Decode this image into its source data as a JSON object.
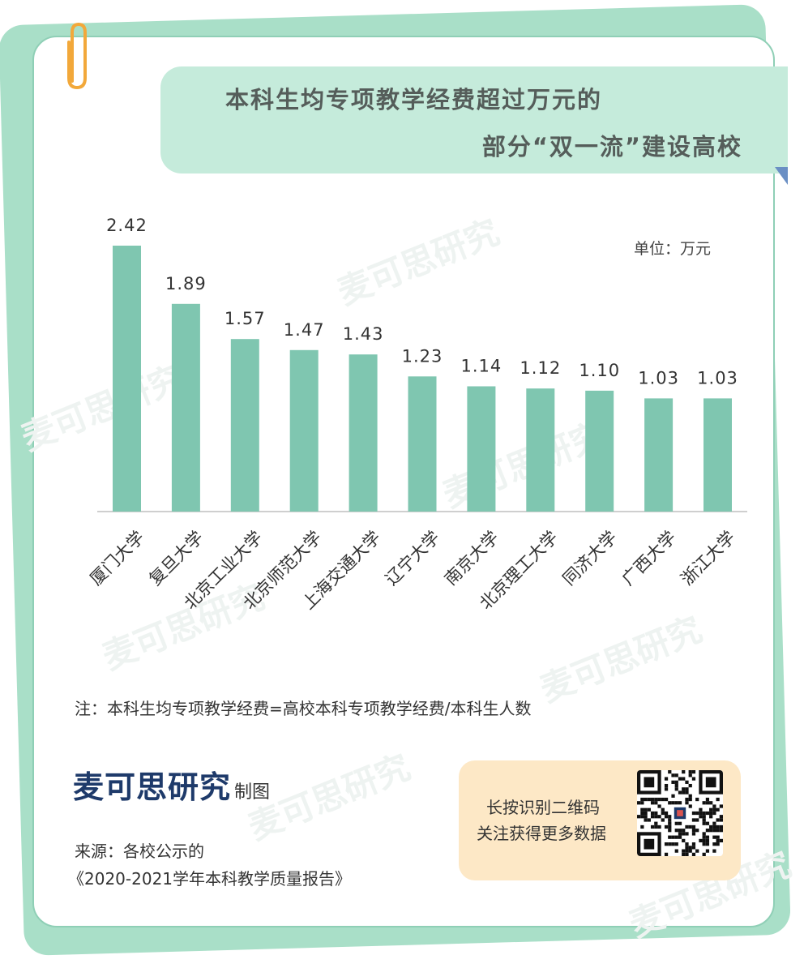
{
  "title_line1": "本科生均专项教学经费超过万元的",
  "title_line2": "部分“双一流”建设高校",
  "unit_label": "单位：万元",
  "note": "注：本科生均专项教学经费=高校本科专项教学经费/本科生人数",
  "brand": {
    "name": "麦可思研究",
    "suffix": "制图"
  },
  "source_line1": "来源：各校公示的",
  "source_line2": "《2020-2021学年本科教学质量报告》",
  "qr": {
    "line1": "长按识别二维码",
    "line2": "关注获得更多数据"
  },
  "watermark": "麦可思研究",
  "colors": {
    "bar": "#7fc6b0",
    "accent": "#c5ebdb",
    "brand": "#1e3a6a",
    "qr_box": "#fde8c6"
  },
  "chart_data": {
    "type": "bar",
    "title": "本科生均专项教学经费超过万元的部分“双一流”建设高校",
    "categories": [
      "厦门大学",
      "复旦大学",
      "北京工业大学",
      "北京师范大学",
      "上海交通大学",
      "辽宁大学",
      "南京大学",
      "北京理工大学",
      "同济大学",
      "广西大学",
      "浙江大学"
    ],
    "values": [
      2.42,
      1.89,
      1.57,
      1.47,
      1.43,
      1.23,
      1.14,
      1.12,
      1.1,
      1.03,
      1.03
    ],
    "value_labels": [
      "2.42",
      "1.89",
      "1.57",
      "1.47",
      "1.43",
      "1.23",
      "1.14",
      "1.12",
      "1.10",
      "1.03",
      "1.03"
    ],
    "ylabel": "单位：万元",
    "ylim": [
      0,
      2.42
    ],
    "grid": false,
    "legend": "none"
  }
}
